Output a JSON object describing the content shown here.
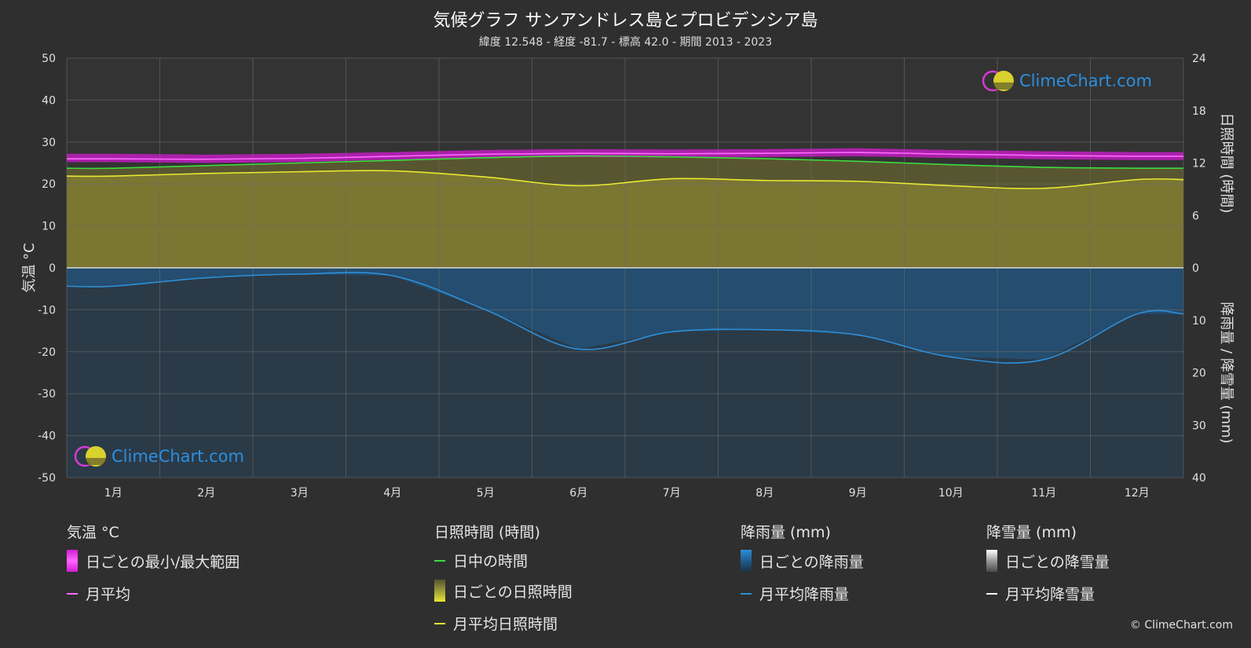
{
  "header": {
    "title": "気候グラフ サンアンドレス島とプロビデンシア島",
    "subtitle": "緯度 12.548 - 経度 -81.7 - 標高 42.0 - 期間 2013 - 2023"
  },
  "brand": {
    "logo_text": "ClimeChart.com",
    "copyright": "© ClimeChart.com"
  },
  "colors": {
    "background": "#2f2f2f",
    "temp_range": "#d41bd4",
    "temp_avg": "#ff6bff",
    "daylight": "#3ddc3d",
    "sunshine_fill": "#807a32",
    "sunshine_avg": "#e8e832",
    "rain_fill": "#1f5c8f",
    "rain_avg": "#2e8fd8",
    "snow_avg": "#ffffff",
    "logo_blue": "#2b8fe0"
  },
  "chart_data": {
    "type": "area",
    "categories": [
      "1月",
      "2月",
      "3月",
      "4月",
      "5月",
      "6月",
      "7月",
      "8月",
      "9月",
      "10月",
      "11月",
      "12月"
    ],
    "left_axis": {
      "label": "気温 °C",
      "min": -50,
      "max": 50,
      "ticks": [
        "50",
        "40",
        "30",
        "20",
        "10",
        "0",
        "-10",
        "-20",
        "-30",
        "-40",
        "-50"
      ]
    },
    "right_axis_sun": {
      "label": "日照時間 (時間)",
      "min": 0,
      "max": 24,
      "ticks": [
        "24",
        "18",
        "12",
        "6",
        "0"
      ]
    },
    "right_axis_rain": {
      "label": "降雨量 / 降雪量 (mm)",
      "min": 0,
      "max": 40,
      "ticks": [
        "10",
        "20",
        "30",
        "40"
      ]
    },
    "grid": true,
    "series": [
      {
        "name": "月平均",
        "unit": "°C",
        "values": [
          26.0,
          25.9,
          26.1,
          26.6,
          27.1,
          27.3,
          27.2,
          27.3,
          27.5,
          27.1,
          26.8,
          26.6
        ]
      },
      {
        "name": "日ごとの最小/最大範囲",
        "unit": "°C",
        "min": [
          25.2,
          25.0,
          25.2,
          25.8,
          26.3,
          26.4,
          26.3,
          26.4,
          26.6,
          26.2,
          25.9,
          25.7
        ],
        "max": [
          27.2,
          27.0,
          27.2,
          27.6,
          28.1,
          28.3,
          28.2,
          28.3,
          28.5,
          28.1,
          27.8,
          27.6
        ]
      },
      {
        "name": "日中の時間",
        "unit": "時間",
        "values": [
          11.4,
          11.7,
          12.0,
          12.3,
          12.6,
          12.8,
          12.7,
          12.5,
          12.2,
          11.8,
          11.5,
          11.4
        ]
      },
      {
        "name": "月平均日照時間",
        "unit": "時間",
        "values": [
          10.5,
          10.8,
          11.0,
          11.1,
          10.4,
          9.4,
          10.2,
          10.0,
          9.9,
          9.4,
          9.1,
          10.1
        ]
      },
      {
        "name": "月平均降雨量",
        "unit": "mm",
        "values": [
          3.5,
          1.9,
          1.2,
          1.5,
          8.0,
          15.5,
          12.2,
          11.8,
          12.8,
          17.0,
          17.5,
          8.8
        ]
      },
      {
        "name": "月平均降雪量",
        "unit": "mm",
        "values": [
          0,
          0,
          0,
          0,
          0,
          0,
          0,
          0,
          0,
          0,
          0,
          0
        ]
      }
    ]
  },
  "legend": {
    "groups": [
      {
        "heading": "気温 °C",
        "items": [
          "日ごとの最小/最大範囲",
          "月平均"
        ]
      },
      {
        "heading": "日照時間 (時間)",
        "items": [
          "日中の時間",
          "日ごとの日照時間",
          "月平均日照時間"
        ]
      },
      {
        "heading": "降雨量 (mm)",
        "items": [
          "日ごとの降雨量",
          "月平均降雨量"
        ]
      },
      {
        "heading": "降雪量 (mm)",
        "items": [
          "日ごとの降雪量",
          "月平均降雪量"
        ]
      }
    ]
  }
}
